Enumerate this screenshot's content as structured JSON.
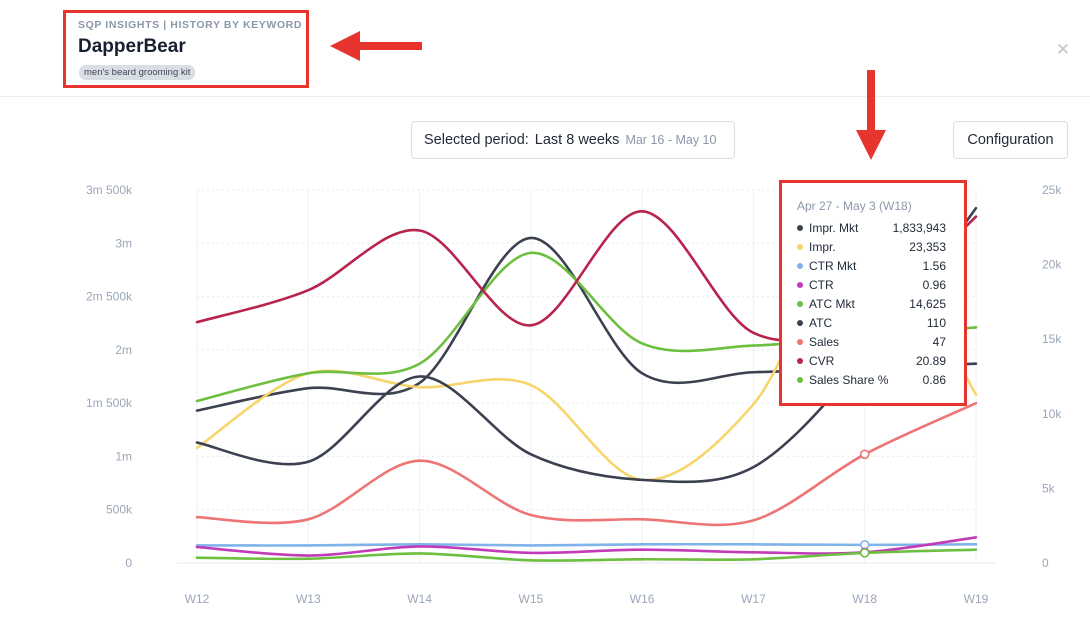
{
  "header": {
    "eyebrow": "SQP INSIGHTS | HISTORY BY KEYWORD",
    "title": "DapperBear",
    "keyword": "men's beard grooming kit",
    "close_icon": "close-icon"
  },
  "controls": {
    "period_label": "Selected period:",
    "period_value": "Last 8 weeks",
    "period_range": "Mar 16 - May 10",
    "config_label": "Configuration"
  },
  "tooltip": {
    "title": "Apr 27 - May 3 (W18)",
    "rows": [
      {
        "name": "Impr. Mkt",
        "value": "1,833,943",
        "color": "#3b4150"
      },
      {
        "name": "Impr.",
        "value": "23,353",
        "color": "#f7d56a"
      },
      {
        "name": "CTR Mkt",
        "value": "1.56",
        "color": "#7fb3ea"
      },
      {
        "name": "CTR",
        "value": "0.96",
        "color": "#c23bb8"
      },
      {
        "name": "ATC Mkt",
        "value": "14,625",
        "color": "#6cbf3f"
      },
      {
        "name": "ATC",
        "value": "110",
        "color": "#3b4150"
      },
      {
        "name": "Sales",
        "value": "47",
        "color": "#ee7573"
      },
      {
        "name": "CVR",
        "value": "20.89",
        "color": "#b8244c"
      },
      {
        "name": "Sales Share %",
        "value": "0.86",
        "color": "#6cbf3f"
      }
    ]
  },
  "annotations": {
    "arrow_color": "#e8342f"
  },
  "chart_data": {
    "type": "line",
    "categories": [
      "W12",
      "W13",
      "W14",
      "W15",
      "W16",
      "W17",
      "W18",
      "W19"
    ],
    "left_axis": {
      "ticks": [
        0,
        500000,
        1000000,
        1500000,
        2000000,
        2500000,
        3000000,
        3500000
      ],
      "tick_labels": [
        "0",
        "500k",
        "1m",
        "1m 500k",
        "2m",
        "2m 500k",
        "3m",
        "3m 500k"
      ],
      "ylim": [
        0,
        3500000
      ]
    },
    "right_axis": {
      "ticks": [
        0,
        5000,
        10000,
        15000,
        20000,
        25000
      ],
      "tick_labels": [
        "0",
        "5k",
        "10k",
        "15k",
        "20k",
        "25k"
      ],
      "ylim": [
        0,
        25000
      ]
    },
    "grid": true,
    "series": [
      {
        "name": "Impr. Mkt",
        "color": "#3b4150",
        "values": [
          1430000,
          1640000,
          1690000,
          3050000,
          1780000,
          1790000,
          1830000,
          1870000
        ]
      },
      {
        "name": "Impr.",
        "color": "#f7d56a",
        "values": [
          1080000,
          1780000,
          1650000,
          1670000,
          780000,
          1490000,
          3200000,
          1580000
        ]
      },
      {
        "name": "CTR Mkt",
        "color": "#7fb3ea",
        "values": [
          165000,
          165000,
          175000,
          165000,
          175000,
          175000,
          170000,
          175000
        ]
      },
      {
        "name": "CTR",
        "color": "#c23bb8",
        "values": [
          150000,
          70000,
          155000,
          95000,
          125000,
          100000,
          100000,
          240000
        ]
      },
      {
        "name": "ATC Mkt",
        "color": "#6cbf3f",
        "values": [
          1520000,
          1780000,
          1870000,
          2910000,
          2060000,
          2040000,
          2130000,
          2210000
        ]
      },
      {
        "name": "ATC",
        "color": "#3b4150",
        "values": [
          1130000,
          950000,
          1750000,
          1020000,
          780000,
          900000,
          1920000,
          3330000
        ]
      },
      {
        "name": "Sales",
        "color": "#ee7573",
        "values": [
          430000,
          410000,
          960000,
          450000,
          410000,
          400000,
          1020000,
          1500000
        ]
      },
      {
        "name": "CVR",
        "color": "#b8244c",
        "values": [
          2260000,
          2560000,
          3120000,
          2230000,
          3300000,
          2160000,
          2300000,
          3250000
        ]
      },
      {
        "name": "Sales Share %",
        "color": "#6cbf3f",
        "values": [
          50000,
          40000,
          90000,
          25000,
          35000,
          35000,
          95000,
          125000
        ]
      }
    ],
    "hover_category": "W18"
  }
}
